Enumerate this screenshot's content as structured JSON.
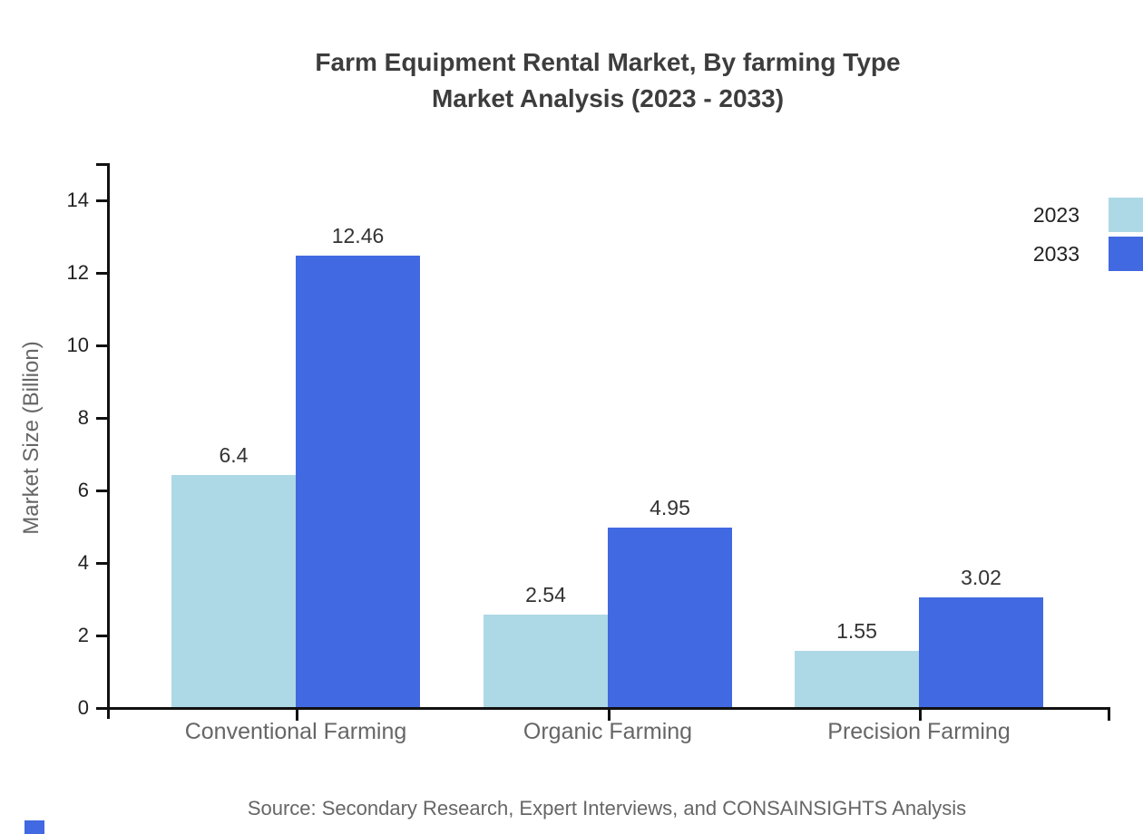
{
  "chart_data": {
    "type": "bar",
    "title": "Farm Equipment Rental Market, By farming Type Market Analysis (2023 - 2033)",
    "title_line1": "Farm Equipment Rental Market, By farming Type",
    "title_line2": "Market Analysis (2023 - 2033)",
    "xlabel": "",
    "ylabel": "Market Size (Billion)",
    "categories": [
      "Conventional Farming",
      "Organic Farming",
      "Precision Farming"
    ],
    "series": [
      {
        "name": "2023",
        "color": "#ADD8E6",
        "values": [
          6.4,
          2.54,
          1.55
        ]
      },
      {
        "name": "2033",
        "color": "#4169E1",
        "values": [
          12.46,
          4.95,
          3.02
        ]
      }
    ],
    "ylim": [
      0,
      15
    ],
    "yticks": [
      0,
      2,
      4,
      6,
      8,
      10,
      12,
      14
    ],
    "grid": false,
    "legend_position": "top-right",
    "value_labels_shown": true
  },
  "source": {
    "text": "Source: Secondary Research, Expert Interviews, and CONSAINSIGHTS Analysis"
  },
  "colors": {
    "title": "#3d3d3d",
    "axis_line": "#111111",
    "axis_tick_text": "#222222",
    "muted_text": "#666666",
    "value_label_text": "#333333"
  }
}
